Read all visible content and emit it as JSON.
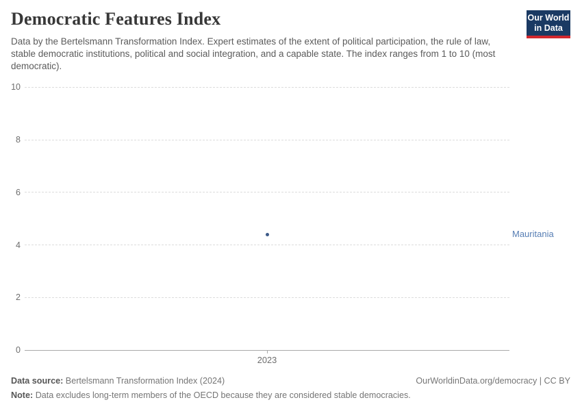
{
  "header": {
    "title": "Democratic Features Index",
    "subtitle": "Data by the Bertelsmann Transformation Index. Expert estimates of the extent of political participation, the rule of law, stable democratic institutions, political and social integration, and a capable state. The index ranges from 1 to 10 (most democratic).",
    "logo": {
      "line1": "Our World",
      "line2": "in Data"
    }
  },
  "chart_data": {
    "type": "scatter",
    "title": "Democratic Features Index",
    "x": [
      2023
    ],
    "series": [
      {
        "name": "Mauritania",
        "values": [
          4.4
        ]
      }
    ],
    "xlabel": "",
    "ylabel": "",
    "ylim": [
      0,
      10
    ],
    "yticks": [
      0,
      2,
      4,
      6,
      8,
      10
    ],
    "xticks": [
      "2023"
    ],
    "grid": "horizontal-dashed",
    "legend_position": "right-of-point",
    "point_color": "#3d5a88",
    "label_color": "#577eb4"
  },
  "footer": {
    "source_label": "Data source:",
    "source_value": "Bertelsmann Transformation Index (2024)",
    "rights": "OurWorldinData.org/democracy | CC BY",
    "note_label": "Note:",
    "note_value": "Data excludes long-term members of the OECD because they are considered stable democracies."
  },
  "colors": {
    "logo_bg": "#1a3a63",
    "logo_bar": "#d2282e",
    "title_text": "#383838",
    "subtitle_text": "#5b5b5b",
    "gridline": "#dcdcdc",
    "axis_line": "#a8a8a8",
    "tick_text": "#6e6e6e",
    "footer_text": "#757575",
    "point": "#3d5a88",
    "entity_label": "#577eb4"
  }
}
